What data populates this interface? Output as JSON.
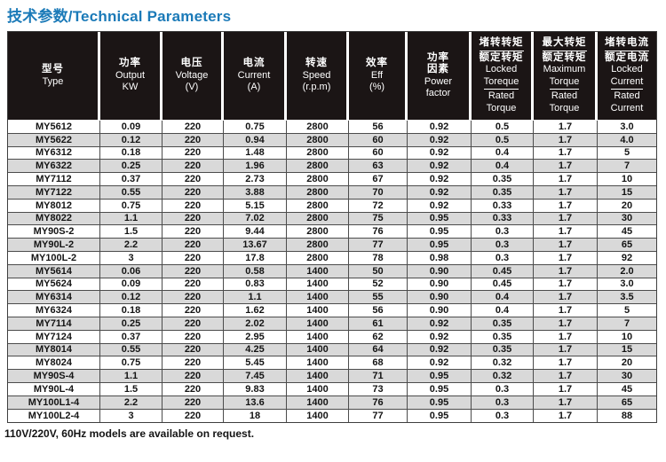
{
  "page": {
    "title": "技术参数/Technical Parameters",
    "footnote": "110V/220V, 60Hz models are available on request."
  },
  "colors": {
    "title_blue": "#1b7ab8",
    "header_bg": "#1b1515",
    "row_alt_gray": "#d9d9d9"
  },
  "table": {
    "columns": [
      {
        "id": "type",
        "lines": [
          {
            "t": "型号",
            "cn": true
          },
          {
            "t": "Type"
          }
        ]
      },
      {
        "id": "output-kw",
        "lines": [
          {
            "t": "功率",
            "cn": true
          },
          {
            "t": "Output"
          },
          {
            "t": "KW"
          }
        ]
      },
      {
        "id": "voltage",
        "lines": [
          {
            "t": "电压",
            "cn": true
          },
          {
            "t": "Voltage"
          },
          {
            "t": "(V)"
          }
        ]
      },
      {
        "id": "current",
        "lines": [
          {
            "t": "电流",
            "cn": true
          },
          {
            "t": "Current"
          },
          {
            "t": "(A)"
          }
        ]
      },
      {
        "id": "speed",
        "lines": [
          {
            "t": "转速",
            "cn": true
          },
          {
            "t": "Speed"
          },
          {
            "t": "(r.p.m)"
          }
        ]
      },
      {
        "id": "efficiency",
        "lines": [
          {
            "t": "效率",
            "cn": true
          },
          {
            "t": "Eff"
          },
          {
            "t": "(%)"
          }
        ]
      },
      {
        "id": "power-factor",
        "lines": [
          {
            "t": "功率",
            "cn": true
          },
          {
            "t": "因素",
            "cn": true
          },
          {
            "t": "Power"
          },
          {
            "t": "factor"
          }
        ]
      },
      {
        "id": "locked-torque-ratio",
        "lines": [
          {
            "t": "堵转转矩",
            "cn": true,
            "u": true
          },
          {
            "t": "额定转矩",
            "cn": true
          },
          {
            "t": "Locked"
          },
          {
            "t": "Toreque",
            "u": true
          },
          {
            "t": "Rated"
          },
          {
            "t": "Torque"
          }
        ]
      },
      {
        "id": "max-torque-ratio",
        "lines": [
          {
            "t": "最大转矩",
            "cn": true,
            "u": true
          },
          {
            "t": "额定转矩",
            "cn": true
          },
          {
            "t": "Maximum"
          },
          {
            "t": "Torque",
            "u": true
          },
          {
            "t": "Rated"
          },
          {
            "t": "Torque"
          }
        ]
      },
      {
        "id": "locked-current-ratio",
        "lines": [
          {
            "t": "堵转电流",
            "cn": true,
            "u": true
          },
          {
            "t": "额定电流",
            "cn": true
          },
          {
            "t": "Locked"
          },
          {
            "t": "Current",
            "u": true
          },
          {
            "t": "Rated"
          },
          {
            "t": "Current"
          }
        ]
      }
    ],
    "rows": [
      [
        "MY5612",
        "0.09",
        "220",
        "0.75",
        "2800",
        "56",
        "0.92",
        "0.5",
        "1.7",
        "3.0"
      ],
      [
        "MY5622",
        "0.12",
        "220",
        "0.94",
        "2800",
        "60",
        "0.92",
        "0.5",
        "1.7",
        "4.0"
      ],
      [
        "MY6312",
        "0.18",
        "220",
        "1.48",
        "2800",
        "60",
        "0.92",
        "0.4",
        "1.7",
        "5"
      ],
      [
        "MY6322",
        "0.25",
        "220",
        "1.96",
        "2800",
        "63",
        "0.92",
        "0.4",
        "1.7",
        "7"
      ],
      [
        "MY7112",
        "0.37",
        "220",
        "2.73",
        "2800",
        "67",
        "0.92",
        "0.35",
        "1.7",
        "10"
      ],
      [
        "MY7122",
        "0.55",
        "220",
        "3.88",
        "2800",
        "70",
        "0.92",
        "0.35",
        "1.7",
        "15"
      ],
      [
        "MY8012",
        "0.75",
        "220",
        "5.15",
        "2800",
        "72",
        "0.92",
        "0.33",
        "1.7",
        "20"
      ],
      [
        "MY8022",
        "1.1",
        "220",
        "7.02",
        "2800",
        "75",
        "0.95",
        "0.33",
        "1.7",
        "30"
      ],
      [
        "MY90S-2",
        "1.5",
        "220",
        "9.44",
        "2800",
        "76",
        "0.95",
        "0.3",
        "1.7",
        "45"
      ],
      [
        "MY90L-2",
        "2.2",
        "220",
        "13.67",
        "2800",
        "77",
        "0.95",
        "0.3",
        "1.7",
        "65"
      ],
      [
        "MY100L-2",
        "3",
        "220",
        "17.8",
        "2800",
        "78",
        "0.98",
        "0.3",
        "1.7",
        "92"
      ],
      [
        "MY5614",
        "0.06",
        "220",
        "0.58",
        "1400",
        "50",
        "0.90",
        "0.45",
        "1.7",
        "2.0"
      ],
      [
        "MY5624",
        "0.09",
        "220",
        "0.83",
        "1400",
        "52",
        "0.90",
        "0.45",
        "1.7",
        "3.0"
      ],
      [
        "MY6314",
        "0.12",
        "220",
        "1.1",
        "1400",
        "55",
        "0.90",
        "0.4",
        "1.7",
        "3.5"
      ],
      [
        "MY6324",
        "0.18",
        "220",
        "1.62",
        "1400",
        "56",
        "0.90",
        "0.4",
        "1.7",
        "5"
      ],
      [
        "MY7114",
        "0.25",
        "220",
        "2.02",
        "1400",
        "61",
        "0.92",
        "0.35",
        "1.7",
        "7"
      ],
      [
        "MY7124",
        "0.37",
        "220",
        "2.95",
        "1400",
        "62",
        "0.92",
        "0.35",
        "1.7",
        "10"
      ],
      [
        "MY8014",
        "0.55",
        "220",
        "4.25",
        "1400",
        "64",
        "0.92",
        "0.35",
        "1.7",
        "15"
      ],
      [
        "MY8024",
        "0.75",
        "220",
        "5.45",
        "1400",
        "68",
        "0.92",
        "0.32",
        "1.7",
        "20"
      ],
      [
        "MY90S-4",
        "1.1",
        "220",
        "7.45",
        "1400",
        "71",
        "0.95",
        "0.32",
        "1.7",
        "30"
      ],
      [
        "MY90L-4",
        "1.5",
        "220",
        "9.83",
        "1400",
        "73",
        "0.95",
        "0.3",
        "1.7",
        "45"
      ],
      [
        "MY100L1-4",
        "2.2",
        "220",
        "13.6",
        "1400",
        "76",
        "0.95",
        "0.3",
        "1.7",
        "65"
      ],
      [
        "MY100L2-4",
        "3",
        "220",
        "18",
        "1400",
        "77",
        "0.95",
        "0.3",
        "1.7",
        "88"
      ]
    ]
  }
}
